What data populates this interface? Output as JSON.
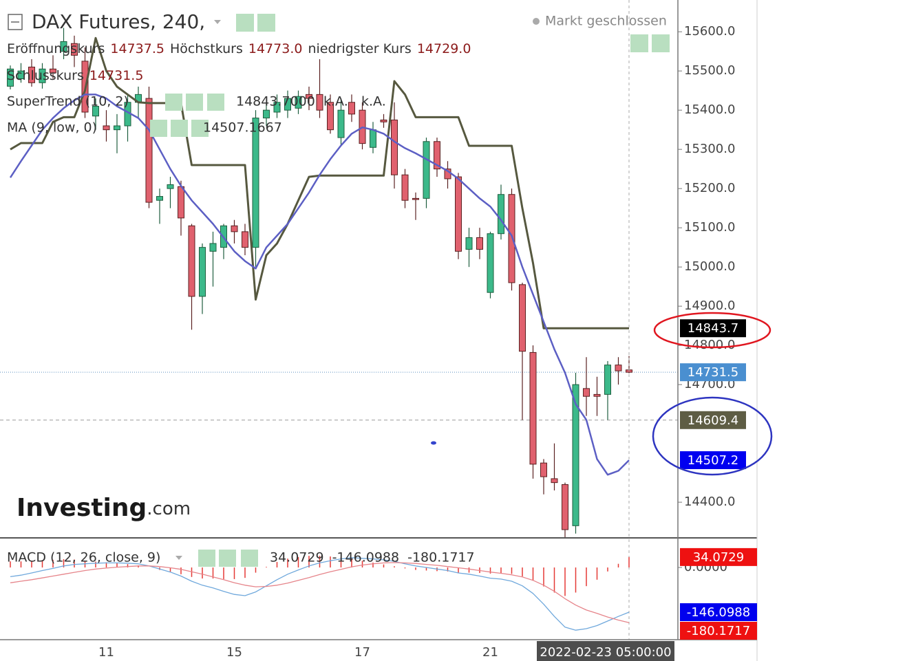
{
  "header": {
    "title": "DAX Futures, 240,",
    "status": "Markt geschlossen"
  },
  "watermark": {
    "brand": "Investing",
    "suffix": ".com"
  },
  "chart_data": [
    {
      "type": "candlestick",
      "categories": [
        null,
        null,
        null,
        null,
        null,
        null,
        null,
        null,
        null,
        "11",
        null,
        null,
        null,
        null,
        null,
        null,
        null,
        null,
        null,
        null,
        null,
        "15",
        null,
        null,
        null,
        null,
        null,
        null,
        null,
        null,
        null,
        null,
        null,
        "17",
        null,
        null,
        null,
        null,
        null,
        null,
        null,
        null,
        null,
        null,
        null,
        "21",
        null,
        null,
        null,
        null,
        null,
        null,
        null,
        null,
        null,
        null,
        null,
        null,
        null
      ],
      "open": [
        15461,
        15480,
        15510,
        15470,
        15505,
        15550,
        15570,
        15525,
        15385,
        15360,
        15350,
        15360,
        15420,
        15430,
        15170,
        15200,
        15205,
        15105,
        14925,
        15040,
        15050,
        15105,
        15090,
        15050,
        15380,
        15395,
        15400,
        15405,
        15440,
        15440,
        15420,
        15330,
        15420,
        15400,
        15305,
        15375,
        15375,
        15235,
        15175,
        15175,
        15320,
        15250,
        15230,
        15045,
        15075,
        14935,
        15085,
        15185,
        14955,
        14782,
        14500,
        14460,
        14445,
        14340,
        14690,
        14675,
        14675,
        14750,
        14737.5
      ],
      "high": [
        15514,
        15520,
        15530,
        15520,
        15540,
        15610,
        15590,
        15560,
        15430,
        15400,
        15390,
        15440,
        15460,
        15460,
        15200,
        15230,
        15220,
        15110,
        15060,
        15090,
        15110,
        15120,
        15110,
        15400,
        15420,
        15440,
        15450,
        15450,
        15460,
        15530,
        15440,
        15430,
        15440,
        15420,
        15370,
        15390,
        15420,
        15250,
        15190,
        15330,
        15330,
        15270,
        15240,
        15100,
        15100,
        15090,
        15210,
        15200,
        14960,
        14800,
        14510,
        14550,
        14450,
        14730,
        14770,
        14720,
        14760,
        14770,
        14773
      ],
      "low": [
        15453,
        15470,
        15460,
        15455,
        15480,
        15530,
        15510,
        15380,
        15350,
        15320,
        15290,
        15320,
        15380,
        15150,
        15110,
        15150,
        15080,
        14840,
        14880,
        14950,
        15020,
        15060,
        15030,
        15000,
        15360,
        15380,
        15380,
        15390,
        15400,
        15380,
        15340,
        15310,
        15370,
        15300,
        15290,
        15355,
        15200,
        15150,
        15120,
        15150,
        15230,
        15200,
        15020,
        15000,
        15020,
        14920,
        15070,
        14940,
        14610,
        14460,
        14420,
        14430,
        14310,
        14320,
        14620,
        14620,
        14610,
        14700,
        14729
      ],
      "close": [
        15505,
        15500,
        15470,
        15505,
        15495,
        15575,
        15540,
        15395,
        15410,
        15350,
        15360,
        15420,
        15440,
        15165,
        15180,
        15210,
        15125,
        14925,
        15050,
        15060,
        15105,
        15090,
        15050,
        15380,
        15400,
        15420,
        15430,
        15435,
        15430,
        15400,
        15350,
        15400,
        15390,
        15315,
        15350,
        15370,
        15235,
        15170,
        15172,
        15320,
        15250,
        15225,
        15040,
        15075,
        15045,
        15085,
        15185,
        14960,
        14785,
        14497,
        14465,
        14450,
        14330,
        14700,
        14670,
        14670,
        14750,
        14735,
        14731.5
      ],
      "up_color": "#3cb98a",
      "down_color": "#e0616e",
      "ohlc_legend": [
        {
          "label": "Eröffnungskurs",
          "value": "14737.5"
        },
        {
          "label": "Höchstkurs",
          "value": "14773.0"
        },
        {
          "label": "niedrigster Kurs",
          "value": "14729.0"
        },
        {
          "label": "Schlusskurs",
          "value": "14731.5"
        }
      ],
      "overlays": [
        {
          "name": "SuperTrend (10, 2)",
          "color": "#56583f",
          "legend_values": [
            "14843.7000",
            "k.A.",
            "k.A."
          ],
          "values": [
            15300,
            15316,
            15316,
            15316,
            15370,
            15382,
            15382,
            15450,
            15584,
            15500,
            15460,
            15440,
            15420,
            15418,
            15418,
            15418,
            15418,
            15260,
            15260,
            15260,
            15260,
            15260,
            15260,
            14917,
            15030,
            15060,
            15110,
            15170,
            15230,
            15233,
            15233,
            15233,
            15233,
            15233,
            15233,
            15233,
            15474,
            15440,
            15382,
            15382,
            15382,
            15382,
            15382,
            15309,
            15309,
            15309,
            15309,
            15309,
            15150,
            15010,
            14843.7,
            14843.7,
            14843.7,
            14843.7,
            14843.7,
            14843.7,
            14843.7,
            14843.7,
            14843.7
          ]
        },
        {
          "name": "MA (9, low, 0)",
          "color": "#5c5fc4",
          "values": [
            15228,
            15270,
            15310,
            15350,
            15380,
            15405,
            15425,
            15440,
            15440,
            15430,
            15410,
            15395,
            15380,
            15350,
            15300,
            15250,
            15207,
            15170,
            15140,
            15110,
            15075,
            15040,
            15015,
            14996,
            15050,
            15080,
            15110,
            15150,
            15190,
            15235,
            15275,
            15310,
            15340,
            15356,
            15350,
            15340,
            15320,
            15303,
            15290,
            15275,
            15260,
            15245,
            15225,
            15200,
            15175,
            15154,
            15120,
            15080,
            15000,
            14930,
            14860,
            14790,
            14730,
            14650,
            14610,
            14510,
            14470,
            14480,
            14507.1667
          ]
        }
      ],
      "ylim": [
        14309,
        15681
      ],
      "yticks": [
        {
          "value": 14400,
          "label": "14400.0"
        },
        {
          "value": 14700,
          "label": "14700.0"
        },
        {
          "value": 14800,
          "label": "14800.0"
        },
        {
          "value": 14900,
          "label": "14900.0"
        },
        {
          "value": 15000,
          "label": "15000.0"
        },
        {
          "value": 15100,
          "label": "15100.0"
        },
        {
          "value": 15200,
          "label": "15200.0"
        },
        {
          "value": 15300,
          "label": "15300.0"
        },
        {
          "value": 15400,
          "label": "15400.0"
        },
        {
          "value": 15500,
          "label": "15500.0"
        },
        {
          "value": 15600,
          "label": "15600.0"
        }
      ],
      "grid": false,
      "price_labels": [
        {
          "value": 14843.7,
          "color": "#000000"
        },
        {
          "value": 14731.5,
          "color": "#4a8fd0",
          "line_style": "dotted"
        },
        {
          "value": 14609.4,
          "color": "#5e5d44",
          "line_style": "dashed"
        },
        {
          "value": 14507.2,
          "color": "#0000f0"
        }
      ],
      "crosshair_label": "2022-02-23 05:00:00"
    },
    {
      "type": "macd",
      "name": "MACD (12, 26, close, 9)",
      "ylim": [
        -236,
        90
      ],
      "yticks": [
        {
          "value": 0,
          "label": "0.0000"
        }
      ],
      "series": [
        {
          "style": "histogram",
          "color": "#e53935",
          "label_color": "#ee1111",
          "values": [
            20,
            20,
            22,
            24,
            25,
            27,
            26,
            22,
            19,
            17,
            14,
            11,
            7,
            0,
            -8,
            -14,
            -22,
            -31,
            -36,
            -36,
            -38,
            -38,
            -34,
            -17,
            2,
            18,
            29,
            34,
            38,
            38,
            36,
            34,
            30,
            22,
            16,
            10,
            4,
            -3,
            -8,
            -10,
            -12,
            -13,
            -17,
            -17,
            -18,
            -20,
            -19,
            -21,
            -29,
            -43,
            -62,
            -82,
            -93,
            -82,
            -61,
            -40,
            -13,
            12,
            34.0729
          ]
        },
        {
          "style": "line",
          "color": "#6fa8dc",
          "label_color": "#0000ee",
          "values": [
            -30,
            -25,
            -18,
            -10,
            -3,
            5,
            10,
            12,
            14,
            15,
            15,
            14,
            12,
            5,
            -5,
            -15,
            -28,
            -45,
            -58,
            -67,
            -78,
            -88,
            -92,
            -80,
            -60,
            -40,
            -22,
            -8,
            5,
            15,
            22,
            28,
            32,
            30,
            28,
            25,
            20,
            12,
            5,
            0,
            -5,
            -10,
            -18,
            -22,
            -28,
            -35,
            -38,
            -45,
            -60,
            -85,
            -120,
            -160,
            -195,
            -205,
            -200,
            -190,
            -175,
            -160,
            -146.0988
          ]
        },
        {
          "style": "line",
          "color": "#e6848a",
          "label_color": "#ee1111",
          "values": [
            -50,
            -45,
            -40,
            -34,
            -28,
            -22,
            -16,
            -10,
            -5,
            -2,
            1,
            3,
            5,
            5,
            3,
            -1,
            -6,
            -14,
            -22,
            -31,
            -40,
            -50,
            -58,
            -63,
            -62,
            -58,
            -51,
            -42,
            -33,
            -23,
            -14,
            -6,
            2,
            8,
            12,
            15,
            16,
            15,
            13,
            10,
            7,
            3,
            -1,
            -5,
            -10,
            -15,
            -19,
            -24,
            -31,
            -42,
            -58,
            -78,
            -102,
            -123,
            -139,
            -150,
            -162,
            -172,
            -180.1717
          ]
        }
      ]
    }
  ]
}
